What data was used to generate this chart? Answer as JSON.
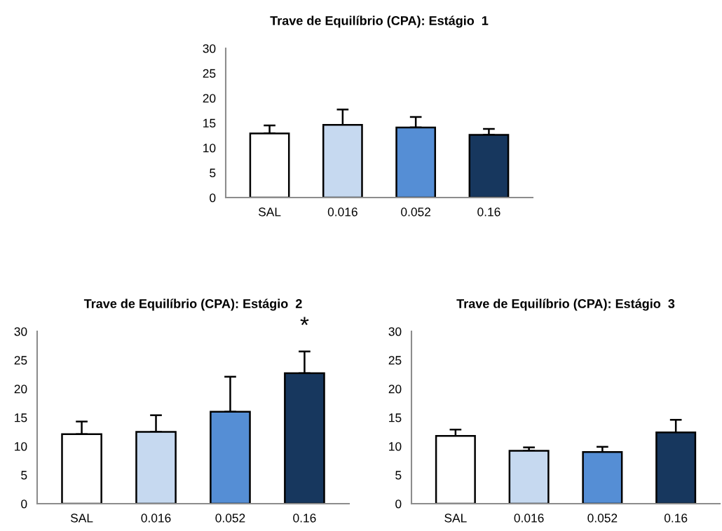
{
  "chart_data": [
    {
      "type": "bar",
      "title": "Trave de Equilíbrio (CPA): Estágio  1",
      "categories": [
        "SAL",
        "0.016",
        "0.052",
        "0.16"
      ],
      "values": [
        12.9,
        14.6,
        14.1,
        12.6
      ],
      "errors": [
        [
          12.9,
          14.5
        ],
        [
          14.6,
          17.7
        ],
        [
          14.1,
          16.2
        ],
        [
          12.6,
          13.8
        ]
      ],
      "colors": [
        "#ffffff",
        "#c6d9f0",
        "#558ed5",
        "#17375e"
      ],
      "ylim": [
        0,
        30
      ],
      "yticks": [
        0,
        5,
        10,
        15,
        20,
        25,
        30
      ],
      "grid": false
    },
    {
      "type": "bar",
      "title": "Trave de Equilíbrio (CPA): Estágio  2",
      "categories": [
        "SAL",
        "0.016",
        "0.052",
        "0.16"
      ],
      "values": [
        12.1,
        12.5,
        16.0,
        22.7
      ],
      "errors": [
        [
          12.1,
          14.3
        ],
        [
          12.5,
          15.4
        ],
        [
          16.0,
          22.1
        ],
        [
          22.7,
          26.5
        ]
      ],
      "colors": [
        "#ffffff",
        "#c6d9f0",
        "#558ed5",
        "#17375e"
      ],
      "ylim": [
        0,
        30
      ],
      "yticks": [
        0,
        5,
        10,
        15,
        20,
        25,
        30
      ],
      "grid": false,
      "annotations": [
        {
          "text": "*",
          "x": "0.16",
          "y": 26.5
        }
      ]
    },
    {
      "type": "bar",
      "title": "Trave de Equilíbrio (CPA): Estágio  3",
      "categories": [
        "SAL",
        "0.016",
        "0.052",
        "0.16"
      ],
      "values": [
        11.8,
        9.2,
        9.0,
        12.4
      ],
      "errors": [
        [
          11.8,
          12.9
        ],
        [
          9.2,
          9.8
        ],
        [
          9.0,
          9.9
        ],
        [
          12.4,
          14.6
        ]
      ],
      "colors": [
        "#ffffff",
        "#c6d9f0",
        "#558ed5",
        "#17375e"
      ],
      "ylim": [
        0,
        30
      ],
      "yticks": [
        0,
        5,
        10,
        15,
        20,
        25,
        30
      ],
      "grid": false
    }
  ]
}
